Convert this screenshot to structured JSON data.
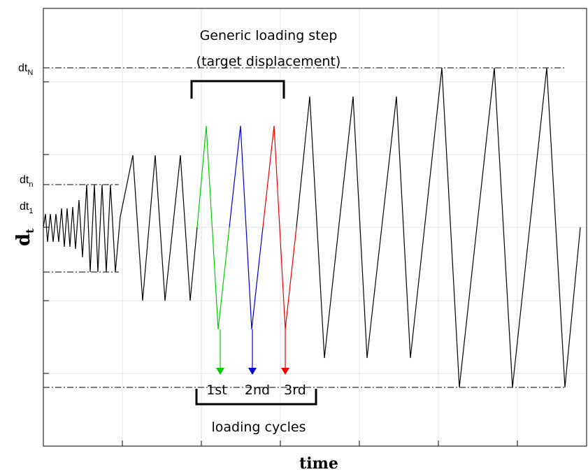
{
  "axes": {
    "x_label": "time",
    "y_label_main": "d",
    "y_label_sub": "t",
    "grid": true
  },
  "levels": {
    "dtN": {
      "base": "dt",
      "sub": "N"
    },
    "dtn": {
      "base": "dt",
      "sub": "n"
    },
    "dt1": {
      "base": "dt",
      "sub": "1"
    }
  },
  "annotations": {
    "step_title_line1": "Generic loading step",
    "step_title_line2": "(target displacement)",
    "cycles_title": "loading cycles",
    "cycle_labels": [
      "1st",
      "2nd",
      "3rd"
    ]
  },
  "colors": {
    "default": "#000000",
    "cycle_1": "#00cc00",
    "cycle_2": "#0000dd",
    "cycle_3": "#ee0000"
  }
}
